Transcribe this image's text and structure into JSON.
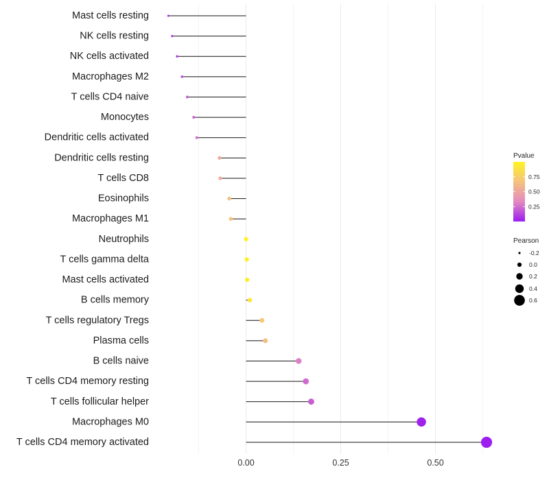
{
  "chart_data": {
    "type": "lollipop",
    "title": "",
    "xlabel": "",
    "ylabel": "",
    "xlim": [
      -0.125,
      0.685
    ],
    "x_ticks": [
      0.0,
      0.25,
      0.5
    ],
    "x_tick_labels": [
      "0.00",
      "0.25",
      "0.50"
    ],
    "grid": true,
    "points": [
      {
        "category": "Mast cells resting",
        "pearson": -0.205,
        "pvalue": 0.05
      },
      {
        "category": "NK cells resting",
        "pearson": -0.195,
        "pvalue": 0.07
      },
      {
        "category": "NK cells activated",
        "pearson": -0.182,
        "pvalue": 0.1
      },
      {
        "category": "Macrophages M2",
        "pearson": -0.169,
        "pvalue": 0.14
      },
      {
        "category": "T cells CD4 naive",
        "pearson": -0.155,
        "pvalue": 0.18
      },
      {
        "category": "Monocytes",
        "pearson": -0.138,
        "pvalue": 0.23
      },
      {
        "category": "Dendritic cells activated",
        "pearson": -0.13,
        "pvalue": 0.26
      },
      {
        "category": "Dendritic cells resting",
        "pearson": -0.07,
        "pvalue": 0.52
      },
      {
        "category": "T cells CD8",
        "pearson": -0.068,
        "pvalue": 0.53
      },
      {
        "category": "Eosinophils",
        "pearson": -0.044,
        "pvalue": 0.66
      },
      {
        "category": "Macrophages M1",
        "pearson": -0.04,
        "pvalue": 0.68
      },
      {
        "category": "Neutrophils",
        "pearson": 0.0,
        "pvalue": 0.99
      },
      {
        "category": "T cells gamma delta",
        "pearson": 0.002,
        "pvalue": 0.98
      },
      {
        "category": "Mast cells activated",
        "pearson": 0.003,
        "pvalue": 0.97
      },
      {
        "category": "B cells memory",
        "pearson": 0.01,
        "pvalue": 0.92
      },
      {
        "category": "T cells regulatory  Tregs",
        "pearson": 0.042,
        "pvalue": 0.7
      },
      {
        "category": "Plasma cells",
        "pearson": 0.051,
        "pvalue": 0.65
      },
      {
        "category": "B cells naive",
        "pearson": 0.139,
        "pvalue": 0.3
      },
      {
        "category": "T cells CD4 memory resting",
        "pearson": 0.158,
        "pvalue": 0.24
      },
      {
        "category": "T cells follicular helper",
        "pearson": 0.172,
        "pvalue": 0.2
      },
      {
        "category": "Macrophages M0",
        "pearson": 0.463,
        "pvalue": 0.02
      },
      {
        "category": "T cells CD4 memory activated",
        "pearson": 0.635,
        "pvalue": 0.01
      }
    ],
    "color_legend": {
      "title": "Pvalue",
      "ticks": [
        0.25,
        0.5,
        0.75
      ],
      "tick_labels": [
        "0.25",
        "0.50",
        "0.75"
      ],
      "range": [
        0.0,
        1.0
      ],
      "colors": [
        "#9b1cf0",
        "#e48ac0",
        "#f5c27e",
        "#fff321"
      ]
    },
    "size_legend": {
      "title": "Pearson",
      "values": [
        -0.2,
        0.0,
        0.2,
        0.4,
        0.6
      ],
      "labels": [
        "-0.2",
        "0.0",
        "0.2",
        "0.4",
        "0.6"
      ]
    },
    "colors": {
      "segment": "#111111",
      "grid": "#ebebeb",
      "legend_dot": "#000000"
    }
  }
}
